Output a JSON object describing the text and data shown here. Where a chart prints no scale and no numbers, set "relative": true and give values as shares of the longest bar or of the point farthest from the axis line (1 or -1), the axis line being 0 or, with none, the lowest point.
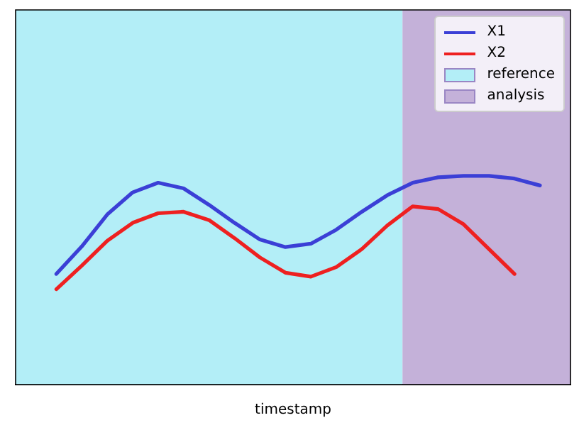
{
  "chart_data": {
    "type": "line",
    "xlabel": "timestamp",
    "relative": true,
    "tick_labels": false,
    "legend": "top right",
    "marker": "none",
    "line_style": "solid",
    "categories": [
      null,
      null,
      null,
      null,
      null,
      null,
      null,
      null,
      null,
      null,
      null,
      null,
      null,
      null,
      null,
      null,
      null,
      null,
      null,
      null
    ],
    "series": [
      {
        "name": "X1",
        "color": "#3b3fd6",
        "values": [
          0.53,
          0.662,
          0.815,
          0.921,
          0.967,
          0.94,
          0.861,
          0.775,
          0.695,
          0.659,
          0.675,
          0.742,
          0.828,
          0.907,
          0.967,
          0.993,
          1,
          1,
          0.987,
          0.954
        ]
      },
      {
        "name": "X2",
        "color": "#ee2020",
        "values": [
          0.457,
          0.57,
          0.689,
          0.775,
          0.821,
          0.828,
          0.788,
          0.702,
          0.609,
          0.536,
          0.517,
          0.563,
          0.649,
          0.762,
          0.854,
          0.841,
          0.768,
          0.649,
          0.53,
          null
        ]
      }
    ],
    "annotations": [
      "reference",
      "analysis"
    ]
  }
}
